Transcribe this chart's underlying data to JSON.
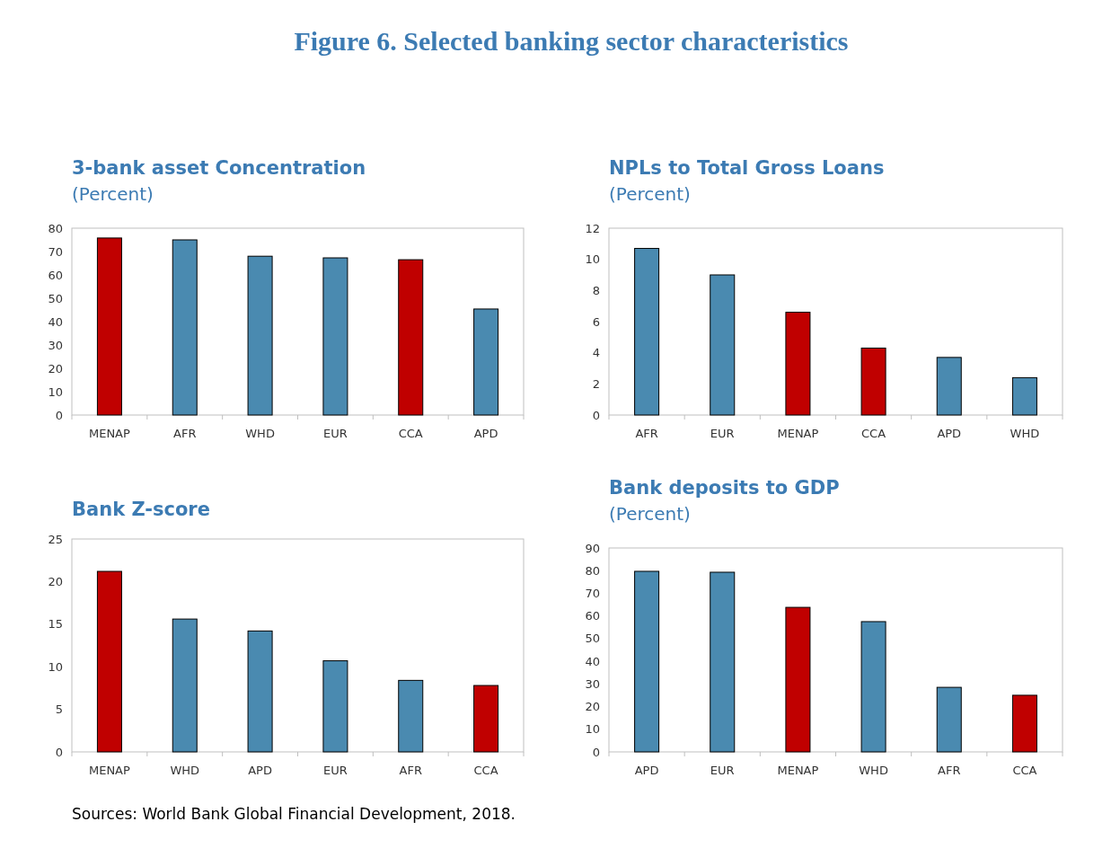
{
  "chart_data": [
    {
      "type": "other",
      "title": "Figure 6. Selected banking sector characteristics"
    },
    {
      "type": "bar",
      "title": "3-bank asset Concentration",
      "subtitle": "(Percent)",
      "categories": [
        "MENAP",
        "AFR",
        "WHD",
        "EUR",
        "CCA",
        "APD"
      ],
      "values": [
        75.8,
        75,
        68,
        67.3,
        66.5,
        45.4
      ],
      "colors": [
        "#c00000",
        "#4a8ab0",
        "#4a8ab0",
        "#4a8ab0",
        "#c00000",
        "#4a8ab0"
      ],
      "ylim": [
        0,
        80
      ],
      "yticks": [
        0,
        10,
        20,
        30,
        40,
        50,
        60,
        70,
        80
      ],
      "grid": false
    },
    {
      "type": "bar",
      "title": "NPLs to Total Gross Loans",
      "subtitle": "(Percent)",
      "categories": [
        "AFR",
        "EUR",
        "MENAP",
        "CCA",
        "APD",
        "WHD"
      ],
      "values": [
        10.7,
        9.0,
        6.6,
        4.3,
        3.7,
        2.4
      ],
      "colors": [
        "#4a8ab0",
        "#4a8ab0",
        "#c00000",
        "#c00000",
        "#4a8ab0",
        "#4a8ab0"
      ],
      "ylim": [
        0,
        12
      ],
      "yticks": [
        0,
        2,
        4,
        6,
        8,
        10,
        12
      ],
      "grid": false
    },
    {
      "type": "bar",
      "title": "Bank Z-score",
      "categories": [
        "MENAP",
        "WHD",
        "APD",
        "EUR",
        "AFR",
        "CCA"
      ],
      "values": [
        21.2,
        15.6,
        14.2,
        10.7,
        8.4,
        7.8
      ],
      "colors": [
        "#c00000",
        "#4a8ab0",
        "#4a8ab0",
        "#4a8ab0",
        "#4a8ab0",
        "#c00000"
      ],
      "ylim": [
        0,
        25
      ],
      "yticks": [
        0,
        5,
        10,
        15,
        20,
        25
      ],
      "grid": false,
      "annotations": [
        "Sources: World Bank Global Financial Development, 2018."
      ]
    },
    {
      "type": "bar",
      "title": "Bank deposits to GDP",
      "subtitle": "(Percent)",
      "categories": [
        "APD",
        "EUR",
        "MENAP",
        "WHD",
        "AFR",
        "CCA"
      ],
      "values": [
        79.7,
        79.3,
        63.8,
        57.5,
        28.5,
        25
      ],
      "colors": [
        "#4a8ab0",
        "#4a8ab0",
        "#c00000",
        "#4a8ab0",
        "#4a8ab0",
        "#c00000"
      ],
      "ylim": [
        0,
        90
      ],
      "yticks": [
        0,
        10,
        20,
        30,
        40,
        50,
        60,
        70,
        80,
        90
      ],
      "grid": false
    }
  ]
}
